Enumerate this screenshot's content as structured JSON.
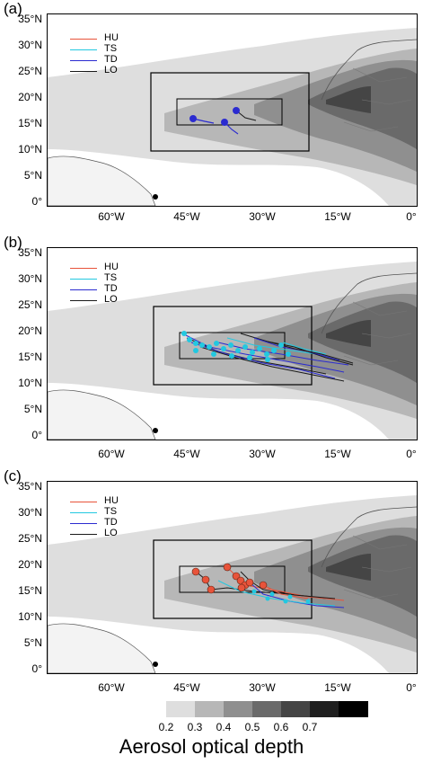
{
  "panels": [
    {
      "label": "(a)",
      "tracks": "a"
    },
    {
      "label": "(b)",
      "tracks": "b"
    },
    {
      "label": "(c)",
      "tracks": "c"
    }
  ],
  "axes": {
    "lat_ticks": [
      "35°N",
      "30°N",
      "25°N",
      "20°N",
      "15°N",
      "10°N",
      "5°N",
      "0°"
    ],
    "lon_ticks": [
      "60°W",
      "45°W",
      "30°W",
      "15°W",
      "0°"
    ]
  },
  "legend": [
    {
      "label": "HU",
      "color": "#e8533a"
    },
    {
      "label": "TS",
      "color": "#22c8e0"
    },
    {
      "label": "TD",
      "color": "#2b2bd0"
    },
    {
      "label": "LO",
      "color": "#1a1a1a"
    }
  ],
  "colorbar": {
    "title": "Aerosol optical depth",
    "ticks": [
      "0.2",
      "0.3",
      "0.4",
      "0.5",
      "0.6",
      "0.7"
    ],
    "colors": [
      "#ffffff",
      "#dedede",
      "#b7b7b7",
      "#8f8f8f",
      "#6a6a6a",
      "#454545",
      "#1f1f1f",
      "#000000"
    ]
  }
}
